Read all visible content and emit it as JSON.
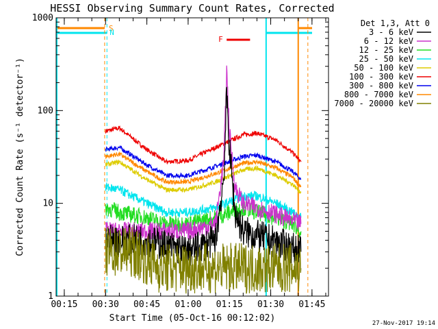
{
  "chart_data": {
    "type": "line",
    "title": "HESSI Observing Summary Count Rates, Corrected",
    "xlabel": "Start Time (05-Oct-16 00:12:02)",
    "ylabel": "Corrected Count Rate (s⁻¹ detector⁻¹)",
    "xlim": [
      "00:12:02",
      "01:51:00"
    ],
    "ylim": [
      1,
      1000
    ],
    "yscale": "log",
    "xticks": [
      "00:15",
      "00:30",
      "00:45",
      "01:00",
      "01:15",
      "01:30",
      "01:45"
    ],
    "yticks": [
      "1",
      "10",
      "100",
      "1000"
    ],
    "grid": false,
    "legend": {
      "title": "Det 1,3, Att 0",
      "placement": "outside-right",
      "entries": [
        {
          "name": "3 - 6 keV",
          "color": "#000000"
        },
        {
          "name": "6 - 12 keV",
          "color": "#cc33cc"
        },
        {
          "name": "12 - 25 keV",
          "color": "#22dd22"
        },
        {
          "name": "25 - 50 keV",
          "color": "#00e5ee"
        },
        {
          "name": "50 - 100 keV",
          "color": "#ddcc00"
        },
        {
          "name": "100 - 300 keV",
          "color": "#ee0000"
        },
        {
          "name": "300 - 800 keV",
          "color": "#0000ee"
        },
        {
          "name": "800 - 7000 keV",
          "color": "#ff8800"
        },
        {
          "name": "7000 - 20000 keV",
          "color": "#808000"
        }
      ]
    },
    "series": [
      {
        "name": "100 - 300 keV",
        "color": "#ee0000",
        "x": [
          "00:30",
          "00:35",
          "00:45",
          "00:52",
          "01:00",
          "01:10",
          "01:20",
          "01:25",
          "01:32",
          "01:38",
          "01:41"
        ],
        "values": [
          60,
          65,
          38,
          28,
          29,
          40,
          55,
          57,
          48,
          35,
          28
        ]
      },
      {
        "name": "300 - 800 keV",
        "color": "#0000ee",
        "x": [
          "00:30",
          "00:35",
          "00:45",
          "00:52",
          "01:00",
          "01:10",
          "01:20",
          "01:25",
          "01:32",
          "01:38",
          "01:41"
        ],
        "values": [
          38,
          40,
          26,
          20,
          20,
          25,
          32,
          33,
          28,
          22,
          18
        ]
      },
      {
        "name": "800 - 7000 keV",
        "color": "#ff8800",
        "x": [
          "00:30",
          "00:35",
          "00:45",
          "00:52",
          "01:00",
          "01:10",
          "01:20",
          "01:25",
          "01:32",
          "01:38",
          "01:41"
        ],
        "values": [
          32,
          34,
          22,
          17,
          17,
          21,
          27,
          28,
          24,
          19,
          15
        ]
      },
      {
        "name": "50 - 100 keV",
        "color": "#ddcc00",
        "x": [
          "00:30",
          "00:35",
          "00:45",
          "00:52",
          "01:00",
          "01:10",
          "01:20",
          "01:25",
          "01:32",
          "01:38",
          "01:41"
        ],
        "values": [
          26,
          28,
          18,
          14,
          14,
          17,
          23,
          24,
          20,
          16,
          13
        ]
      },
      {
        "name": "25 - 50 keV",
        "color": "#00e5ee",
        "x": [
          "00:30",
          "00:35",
          "00:45",
          "00:52",
          "01:00",
          "01:10",
          "01:20",
          "01:25",
          "01:32",
          "01:38",
          "01:41"
        ],
        "values": [
          15,
          14,
          10,
          8,
          8,
          9,
          12,
          12,
          10,
          8,
          7
        ]
      },
      {
        "name": "12 - 25 keV",
        "color": "#22dd22",
        "x": [
          "00:30",
          "00:35",
          "00:45",
          "00:52",
          "01:00",
          "01:10",
          "01:20",
          "01:25",
          "01:32",
          "01:38",
          "01:41"
        ],
        "values": [
          9,
          8,
          7,
          6,
          6,
          7,
          9,
          8,
          7,
          6,
          5
        ]
      },
      {
        "name": "6 - 12 keV",
        "color": "#cc33cc",
        "x": [
          "00:30",
          "00:45",
          "01:00",
          "01:10",
          "01:13",
          "01:14",
          "01:15",
          "01:17",
          "01:20",
          "01:30",
          "01:41"
        ],
        "values": [
          5,
          5,
          5,
          6,
          30,
          280,
          60,
          15,
          10,
          8,
          6
        ]
      },
      {
        "name": "3 - 6 keV",
        "color": "#000000",
        "x": [
          "00:30",
          "00:45",
          "01:00",
          "01:10",
          "01:13",
          "01:14",
          "01:15",
          "01:17",
          "01:20",
          "01:30",
          "01:41"
        ],
        "values": [
          4,
          4,
          3,
          4,
          20,
          150,
          40,
          8,
          5,
          4,
          3
        ]
      },
      {
        "name": "7000 - 20000 keV",
        "color": "#808000",
        "x": [
          "00:30",
          "00:40",
          "00:50",
          "01:00",
          "01:10",
          "01:20",
          "01:30",
          "01:41"
        ],
        "values": [
          3,
          3,
          2,
          2,
          2,
          2,
          2,
          2
        ]
      }
    ],
    "annotations": [
      {
        "label": "S",
        "color": "#ff8800"
      },
      {
        "label": "N",
        "color": "#00e5ee"
      },
      {
        "label": "F",
        "color": "#ee0000",
        "x_range": [
          "01:13",
          "01:22"
        ]
      }
    ],
    "footer": "27-Nov-2017 19:14"
  }
}
